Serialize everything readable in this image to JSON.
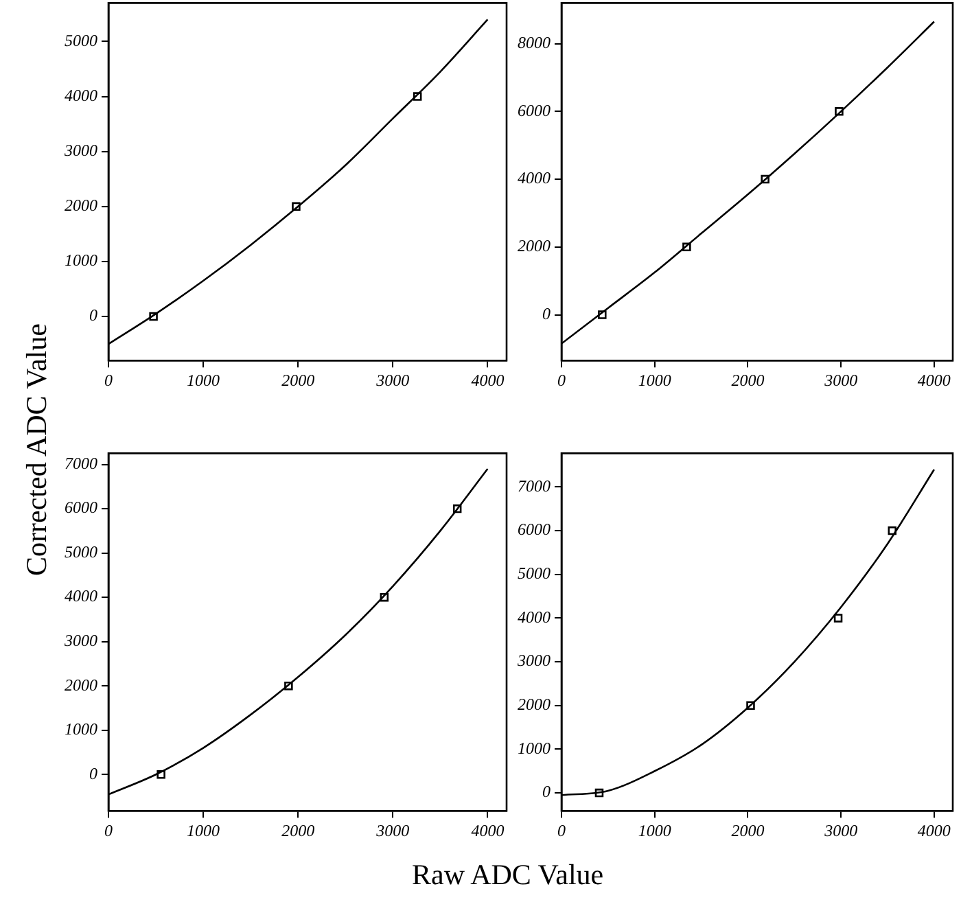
{
  "chart_data": [
    {
      "type": "scatter",
      "ylabel": "Corrected ADC Value",
      "xlim": [
        0,
        4200
      ],
      "xticks": [
        0,
        1000,
        2000,
        3000,
        4000
      ],
      "ylim": [
        -800,
        5700
      ],
      "yticks": [
        0,
        1000,
        2000,
        3000,
        4000,
        5000
      ],
      "grid": false,
      "legend": false,
      "tick_labels": "xy",
      "series": [
        {
          "type": "scatter",
          "marker": "square",
          "color": "#000000",
          "x": [
            475,
            1980,
            3260
          ],
          "values": [
            0,
            2000,
            4000
          ]
        },
        {
          "type": "line",
          "marker": "none",
          "color": "#000000",
          "x": [
            0,
            500,
            1000,
            1500,
            2000,
            2500,
            3000,
            3500,
            4000
          ],
          "values": [
            -500,
            50,
            650,
            1300,
            2000,
            2750,
            3600,
            4450,
            5400
          ]
        }
      ]
    },
    {
      "type": "scatter",
      "xlim": [
        0,
        4200
      ],
      "xticks": [
        0,
        1000,
        2000,
        3000,
        4000
      ],
      "ylim": [
        -1350,
        9200
      ],
      "yticks": [
        0,
        2000,
        4000,
        6000,
        8000
      ],
      "grid": false,
      "legend": false,
      "series": [
        {
          "type": "scatter",
          "marker": "square",
          "color": "#000000",
          "x": [
            437,
            1344,
            2186,
            2980
          ],
          "values": [
            0,
            2000,
            4000,
            6000
          ]
        },
        {
          "type": "line",
          "marker": "none",
          "color": "#000000",
          "x": [
            0,
            500,
            1000,
            1500,
            2000,
            2500,
            3000,
            3500,
            4000
          ],
          "values": [
            -850,
            200,
            1250,
            2400,
            3550,
            4750,
            6000,
            7300,
            8650
          ]
        }
      ]
    },
    {
      "type": "scatter",
      "xlabel": "Raw ADC Value",
      "xlim": [
        0,
        4200
      ],
      "xticks": [
        0,
        1000,
        2000,
        3000,
        4000
      ],
      "ylim": [
        -820,
        7250
      ],
      "yticks": [
        0,
        1000,
        2000,
        3000,
        4000,
        5000,
        6000,
        7000
      ],
      "grid": false,
      "legend": false,
      "series": [
        {
          "type": "scatter",
          "marker": "square",
          "color": "#000000",
          "x": [
            555,
            1900,
            2910,
            3680
          ],
          "values": [
            0,
            2000,
            4000,
            6000
          ]
        },
        {
          "type": "line",
          "marker": "none",
          "color": "#000000",
          "x": [
            0,
            500,
            1000,
            1500,
            2000,
            2500,
            3000,
            3500,
            4000
          ],
          "values": [
            -450,
            0,
            600,
            1350,
            2200,
            3150,
            4250,
            5500,
            6900
          ]
        }
      ]
    },
    {
      "type": "scatter",
      "xlim": [
        0,
        4200
      ],
      "xticks": [
        0,
        1000,
        2000,
        3000,
        4000
      ],
      "ylim": [
        -410,
        7770
      ],
      "yticks": [
        0,
        1000,
        2000,
        3000,
        4000,
        5000,
        6000,
        7000
      ],
      "grid": false,
      "legend": false,
      "series": [
        {
          "type": "scatter",
          "marker": "square",
          "color": "#000000",
          "x": [
            405,
            2030,
            2970,
            3550
          ],
          "values": [
            0,
            2000,
            4000,
            6000
          ]
        },
        {
          "type": "line",
          "marker": "none",
          "color": "#000000",
          "x": [
            0,
            500,
            1000,
            1500,
            2000,
            2500,
            3000,
            3500,
            4000
          ],
          "values": [
            -50,
            50,
            500,
            1100,
            1950,
            3000,
            4250,
            5700,
            7400
          ]
        }
      ]
    }
  ]
}
